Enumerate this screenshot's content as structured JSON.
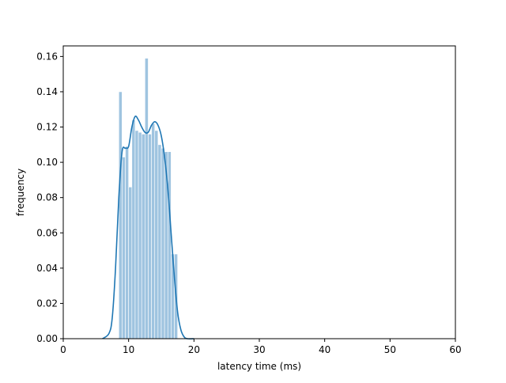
{
  "chart_data": {
    "type": "bar",
    "title": "",
    "xlabel": "latency time (ms)",
    "ylabel": "frequency",
    "xlim": [
      0,
      60
    ],
    "ylim": [
      0,
      0.166
    ],
    "xticks": [
      0,
      10,
      20,
      30,
      40,
      50,
      60
    ],
    "yticks": [
      0.0,
      0.02,
      0.04,
      0.06,
      0.08,
      0.1,
      0.12,
      0.14,
      0.16
    ],
    "grid": false,
    "legend": "none",
    "colors": {
      "bars": "#9fc4e0",
      "kde": "#1f77b4"
    },
    "series": [
      {
        "type": "histogram",
        "bins": [
          {
            "x0": 8.5,
            "x1": 9.0,
            "y": 0.14
          },
          {
            "x0": 9.0,
            "x1": 9.5,
            "y": 0.103
          },
          {
            "x0": 9.5,
            "x1": 10.0,
            "y": 0.109
          },
          {
            "x0": 10.0,
            "x1": 10.5,
            "y": 0.086
          },
          {
            "x0": 10.5,
            "x1": 11.0,
            "y": 0.124
          },
          {
            "x0": 11.0,
            "x1": 11.5,
            "y": 0.118
          },
          {
            "x0": 11.5,
            "x1": 12.0,
            "y": 0.117
          },
          {
            "x0": 12.0,
            "x1": 12.5,
            "y": 0.116
          },
          {
            "x0": 12.5,
            "x1": 13.0,
            "y": 0.159
          },
          {
            "x0": 13.0,
            "x1": 13.5,
            "y": 0.116
          },
          {
            "x0": 13.5,
            "x1": 14.0,
            "y": 0.122
          },
          {
            "x0": 14.0,
            "x1": 14.5,
            "y": 0.118
          },
          {
            "x0": 14.5,
            "x1": 15.0,
            "y": 0.11
          },
          {
            "x0": 15.0,
            "x1": 15.5,
            "y": 0.108
          },
          {
            "x0": 15.5,
            "x1": 16.0,
            "y": 0.106
          },
          {
            "x0": 16.0,
            "x1": 16.5,
            "y": 0.106
          },
          {
            "x0": 16.5,
            "x1": 17.0,
            "y": 0.048
          },
          {
            "x0": 17.0,
            "x1": 17.5,
            "y": 0.048
          }
        ]
      },
      {
        "type": "kde",
        "x": [
          6.0,
          7.0,
          7.5,
          8.0,
          8.5,
          9.0,
          9.5,
          10.0,
          10.5,
          11.0,
          11.5,
          12.0,
          12.5,
          13.0,
          13.5,
          14.0,
          14.5,
          15.0,
          15.5,
          16.0,
          16.5,
          17.0,
          17.5,
          18.0,
          18.5,
          19.0,
          20.0
        ],
        "y": [
          0.0,
          0.003,
          0.012,
          0.04,
          0.08,
          0.106,
          0.108,
          0.109,
          0.12,
          0.126,
          0.124,
          0.12,
          0.117,
          0.117,
          0.121,
          0.123,
          0.121,
          0.115,
          0.103,
          0.085,
          0.06,
          0.035,
          0.015,
          0.005,
          0.001,
          0.0,
          0.0
        ]
      }
    ]
  }
}
